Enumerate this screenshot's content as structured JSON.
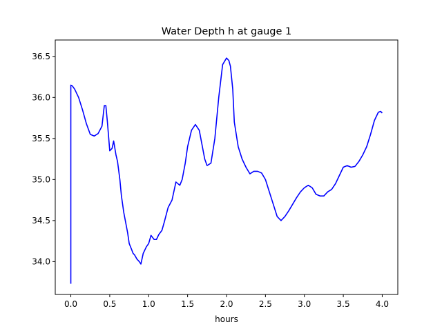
{
  "chart_data": {
    "type": "line",
    "title": "Water Depth h at gauge 1",
    "xlabel": "hours",
    "ylabel": "",
    "xlim": [
      -0.2,
      4.2
    ],
    "ylim": [
      33.6,
      36.7
    ],
    "xticks": [
      0.0,
      0.5,
      1.0,
      1.5,
      2.0,
      2.5,
      3.0,
      3.5,
      4.0
    ],
    "xtick_labels": [
      "0.0",
      "0.5",
      "1.0",
      "1.5",
      "2.0",
      "2.5",
      "3.0",
      "3.5",
      "4.0"
    ],
    "yticks": [
      34.0,
      34.5,
      35.0,
      35.5,
      36.0,
      36.5
    ],
    "ytick_labels": [
      "34.0",
      "34.5",
      "35.0",
      "35.5",
      "36.0",
      "36.5"
    ],
    "grid": false,
    "legend": "none",
    "series": [
      {
        "color": "#0000ff",
        "x": [
          0.0,
          0.0,
          0.02,
          0.05,
          0.1,
          0.15,
          0.2,
          0.25,
          0.3,
          0.35,
          0.4,
          0.43,
          0.45,
          0.47,
          0.5,
          0.53,
          0.55,
          0.58,
          0.6,
          0.63,
          0.65,
          0.68,
          0.7,
          0.73,
          0.75,
          0.78,
          0.8,
          0.82,
          0.85,
          0.88,
          0.9,
          0.93,
          0.97,
          1.0,
          1.03,
          1.07,
          1.1,
          1.13,
          1.17,
          1.2,
          1.25,
          1.3,
          1.35,
          1.4,
          1.43,
          1.47,
          1.5,
          1.55,
          1.6,
          1.65,
          1.68,
          1.72,
          1.75,
          1.8,
          1.85,
          1.9,
          1.95,
          2.0,
          2.03,
          2.05,
          2.08,
          2.1,
          2.15,
          2.2,
          2.25,
          2.3,
          2.35,
          2.4,
          2.45,
          2.5,
          2.55,
          2.6,
          2.65,
          2.7,
          2.75,
          2.8,
          2.85,
          2.9,
          2.95,
          3.0,
          3.05,
          3.1,
          3.15,
          3.2,
          3.25,
          3.3,
          3.35,
          3.4,
          3.45,
          3.5,
          3.55,
          3.6,
          3.65,
          3.7,
          3.75,
          3.8,
          3.85,
          3.9,
          3.95,
          3.98,
          4.0
        ],
        "y": [
          33.73,
          36.15,
          36.14,
          36.1,
          36.0,
          35.85,
          35.68,
          35.55,
          35.53,
          35.56,
          35.65,
          35.9,
          35.9,
          35.7,
          35.35,
          35.38,
          35.47,
          35.3,
          35.22,
          35.0,
          34.8,
          34.6,
          34.5,
          34.35,
          34.22,
          34.15,
          34.1,
          34.08,
          34.03,
          34.0,
          33.97,
          34.1,
          34.18,
          34.22,
          34.32,
          34.27,
          34.27,
          34.33,
          34.38,
          34.48,
          34.66,
          34.75,
          34.97,
          34.93,
          35.0,
          35.2,
          35.4,
          35.6,
          35.67,
          35.6,
          35.45,
          35.25,
          35.17,
          35.2,
          35.5,
          36.0,
          36.4,
          36.48,
          36.45,
          36.38,
          36.1,
          35.7,
          35.4,
          35.25,
          35.15,
          35.07,
          35.1,
          35.1,
          35.08,
          35.0,
          34.85,
          34.7,
          34.55,
          34.5,
          34.55,
          34.62,
          34.7,
          34.78,
          34.85,
          34.9,
          34.93,
          34.9,
          34.82,
          34.8,
          34.8,
          34.85,
          34.88,
          34.95,
          35.05,
          35.15,
          35.17,
          35.15,
          35.16,
          35.22,
          35.3,
          35.4,
          35.55,
          35.72,
          35.82,
          35.83,
          35.81
        ]
      }
    ]
  }
}
